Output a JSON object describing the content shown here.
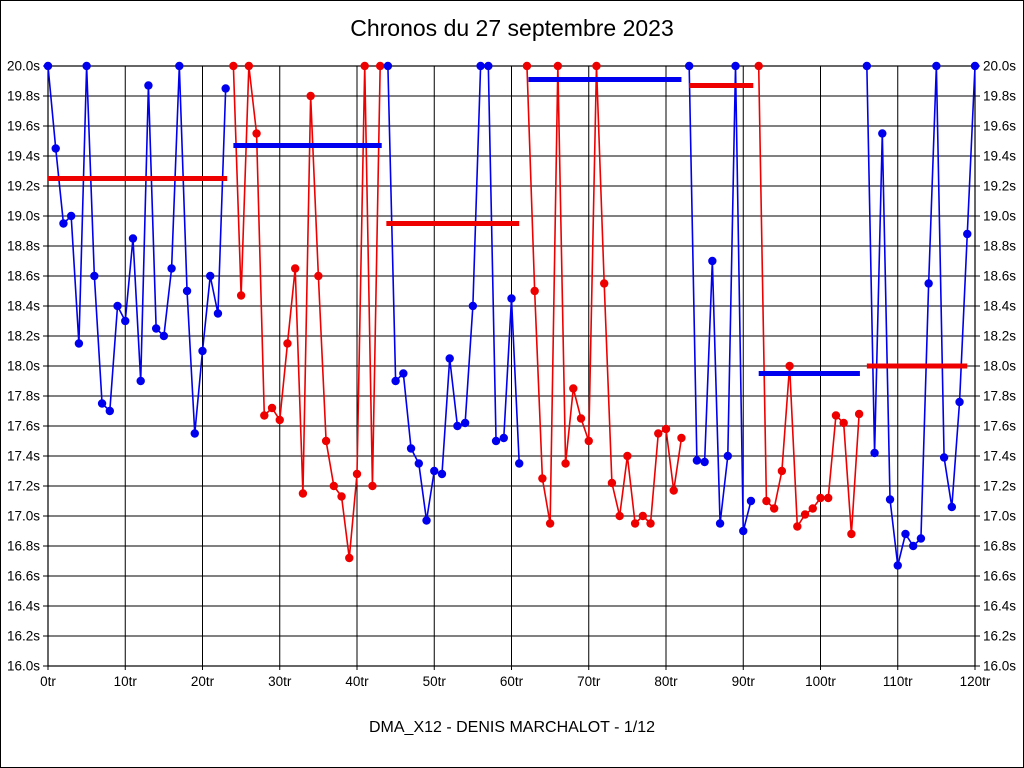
{
  "title": "Chronos du 27 septembre 2023",
  "footer": "DMA_X12 - DENIS MARCHALOT - 1/12",
  "palette": {
    "blue": "#0000ee",
    "red": "#ee0000",
    "grid": "#000000",
    "text": "#000000"
  },
  "chart_data": {
    "type": "line",
    "title": "Chronos du 27 septembre 2023",
    "subtitle": "DMA_X12 - DENIS MARCHALOT - 1/12",
    "x_unit": "tr",
    "y_unit": "s",
    "xlim": [
      0,
      120
    ],
    "ylim": [
      16.0,
      20.0
    ],
    "grid": true,
    "legend": "none",
    "x_ticks": [
      0,
      10,
      20,
      30,
      40,
      50,
      60,
      70,
      80,
      90,
      100,
      110,
      120
    ],
    "x_tick_labels": [
      "0tr",
      "10tr",
      "20tr",
      "30tr",
      "40tr",
      "50tr",
      "60tr",
      "70tr",
      "80tr",
      "90tr",
      "100tr",
      "110tr",
      "120tr"
    ],
    "y_ticks": [
      20.0,
      19.8,
      19.6,
      19.4,
      19.2,
      19.0,
      18.8,
      18.6,
      18.4,
      18.2,
      18.0,
      17.8,
      17.6,
      17.4,
      17.2,
      17.0,
      16.8,
      16.6,
      16.4,
      16.2,
      16.0
    ],
    "y_tick_labels": [
      "20.0s",
      "19.8s",
      "19.6s",
      "19.4s",
      "19.2s",
      "19.0s",
      "18.8s",
      "18.6s",
      "18.4s",
      "18.2s",
      "18.0s",
      "17.8s",
      "17.6s",
      "17.4s",
      "17.2s",
      "17.0s",
      "16.8s",
      "16.6s",
      "16.4s",
      "16.2s",
      "16.0s"
    ],
    "series": [
      {
        "name": "stint-1",
        "color": "blue",
        "points": [
          [
            0,
            20.0
          ],
          [
            1,
            19.45
          ],
          [
            2,
            18.95
          ],
          [
            3,
            19.0
          ],
          [
            4,
            18.15
          ],
          [
            5,
            20.0
          ],
          [
            6,
            18.6
          ],
          [
            7,
            17.75
          ],
          [
            8,
            17.7
          ],
          [
            9,
            18.4
          ],
          [
            10,
            18.3
          ],
          [
            11,
            18.85
          ],
          [
            12,
            17.9
          ],
          [
            13,
            19.87
          ],
          [
            14,
            18.25
          ],
          [
            15,
            18.2
          ],
          [
            16,
            18.65
          ],
          [
            17,
            20.0
          ],
          [
            18,
            18.5
          ],
          [
            19,
            17.55
          ],
          [
            20,
            18.1
          ],
          [
            21,
            18.6
          ],
          [
            22,
            18.35
          ],
          [
            23,
            19.85
          ]
        ]
      },
      {
        "name": "stint-2",
        "color": "red",
        "points": [
          [
            24,
            20.0
          ],
          [
            25,
            18.47
          ],
          [
            26,
            20.0
          ],
          [
            27,
            19.55
          ],
          [
            28,
            17.67
          ],
          [
            29,
            17.72
          ],
          [
            30,
            17.64
          ],
          [
            31,
            18.15
          ],
          [
            32,
            18.65
          ],
          [
            33,
            17.15
          ],
          [
            34,
            19.8
          ],
          [
            35,
            18.6
          ],
          [
            36,
            17.5
          ],
          [
            37,
            17.2
          ],
          [
            38,
            17.13
          ],
          [
            39,
            16.72
          ],
          [
            40,
            17.28
          ],
          [
            41,
            20.0
          ],
          [
            42,
            17.2
          ],
          [
            43,
            20.0
          ]
        ]
      },
      {
        "name": "stint-3",
        "color": "blue",
        "points": [
          [
            44,
            20.0
          ],
          [
            45,
            17.9
          ],
          [
            46,
            17.95
          ],
          [
            47,
            17.45
          ],
          [
            48,
            17.35
          ],
          [
            49,
            16.97
          ],
          [
            50,
            17.3
          ],
          [
            51,
            17.28
          ],
          [
            52,
            18.05
          ],
          [
            53,
            17.6
          ],
          [
            54,
            17.62
          ],
          [
            55,
            18.4
          ],
          [
            56,
            20.0
          ],
          [
            57,
            20.0
          ],
          [
            58,
            17.5
          ],
          [
            59,
            17.52
          ],
          [
            60,
            18.45
          ],
          [
            61,
            17.35
          ]
        ]
      },
      {
        "name": "stint-4",
        "color": "red",
        "points": [
          [
            62,
            20.0
          ],
          [
            63,
            18.5
          ],
          [
            64,
            17.25
          ],
          [
            65,
            16.95
          ],
          [
            66,
            20.0
          ],
          [
            67,
            17.35
          ],
          [
            68,
            17.85
          ],
          [
            69,
            17.65
          ],
          [
            70,
            17.5
          ],
          [
            71,
            20.0
          ],
          [
            72,
            18.55
          ],
          [
            73,
            17.22
          ],
          [
            74,
            17.0
          ],
          [
            75,
            17.4
          ],
          [
            76,
            16.95
          ],
          [
            77,
            17.0
          ],
          [
            78,
            16.95
          ],
          [
            79,
            17.55
          ],
          [
            80,
            17.58
          ],
          [
            81,
            17.17
          ],
          [
            82,
            17.52
          ]
        ]
      },
      {
        "name": "stint-5",
        "color": "blue",
        "points": [
          [
            83,
            20.0
          ],
          [
            84,
            17.37
          ],
          [
            85,
            17.36
          ],
          [
            86,
            18.7
          ],
          [
            87,
            16.95
          ],
          [
            88,
            17.4
          ],
          [
            89,
            20.0
          ],
          [
            90,
            16.9
          ],
          [
            91,
            17.1
          ]
        ]
      },
      {
        "name": "stint-6",
        "color": "red",
        "points": [
          [
            92,
            20.0
          ],
          [
            93,
            17.1
          ],
          [
            94,
            17.05
          ],
          [
            95,
            17.3
          ],
          [
            96,
            18.0
          ],
          [
            97,
            16.93
          ],
          [
            98,
            17.01
          ],
          [
            99,
            17.05
          ],
          [
            100,
            17.12
          ],
          [
            101,
            17.12
          ],
          [
            102,
            17.67
          ],
          [
            103,
            17.62
          ],
          [
            104,
            16.88
          ],
          [
            105,
            17.68
          ]
        ]
      },
      {
        "name": "stint-7",
        "color": "blue",
        "points": [
          [
            106,
            20.0
          ],
          [
            107,
            17.42
          ],
          [
            108,
            19.55
          ],
          [
            109,
            17.11
          ],
          [
            110,
            16.67
          ],
          [
            111,
            16.88
          ],
          [
            112,
            16.8
          ],
          [
            113,
            16.85
          ],
          [
            114,
            18.55
          ],
          [
            115,
            20.0
          ],
          [
            116,
            17.39
          ],
          [
            117,
            17.06
          ],
          [
            118,
            17.76
          ],
          [
            119,
            18.88
          ],
          [
            120,
            20.0
          ]
        ]
      }
    ],
    "average_segments": [
      {
        "name": "avg-1",
        "color": "red",
        "from": 0,
        "to": 23.2,
        "y": 19.25
      },
      {
        "name": "avg-2",
        "color": "blue",
        "from": 24,
        "to": 43.2,
        "y": 19.47
      },
      {
        "name": "avg-3",
        "color": "red",
        "from": 43.8,
        "to": 61,
        "y": 18.95
      },
      {
        "name": "avg-4",
        "color": "blue",
        "from": 62.2,
        "to": 82,
        "y": 19.91
      },
      {
        "name": "avg-5",
        "color": "red",
        "from": 83,
        "to": 91.3,
        "y": 19.87
      },
      {
        "name": "avg-6",
        "color": "blue",
        "from": 92,
        "to": 105.1,
        "y": 17.95
      },
      {
        "name": "avg-7",
        "color": "red",
        "from": 106,
        "to": 119,
        "y": 18.0
      }
    ]
  }
}
